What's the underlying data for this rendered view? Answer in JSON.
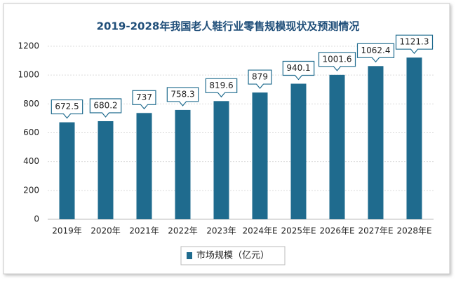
{
  "chart_data": {
    "type": "bar",
    "title": "2019-2028年我国老人鞋行业零售规模现状及预测情况",
    "categories": [
      "2019年",
      "2020年",
      "2021年",
      "2022年",
      "2023年",
      "2024年E",
      "2025年E",
      "2026年E",
      "2027年E",
      "2028年E"
    ],
    "series": [
      {
        "name": "市场规模（亿元）",
        "color": "#1f6b8e",
        "values": [
          672.5,
          680.2,
          737,
          758.3,
          819.6,
          879,
          940.1,
          1001.6,
          1062.4,
          1121.3
        ]
      }
    ],
    "ylim": [
      0,
      1200
    ],
    "yticks": [
      0,
      200,
      400,
      600,
      800,
      1000,
      1200
    ],
    "grid": true,
    "legend": "bottom"
  }
}
